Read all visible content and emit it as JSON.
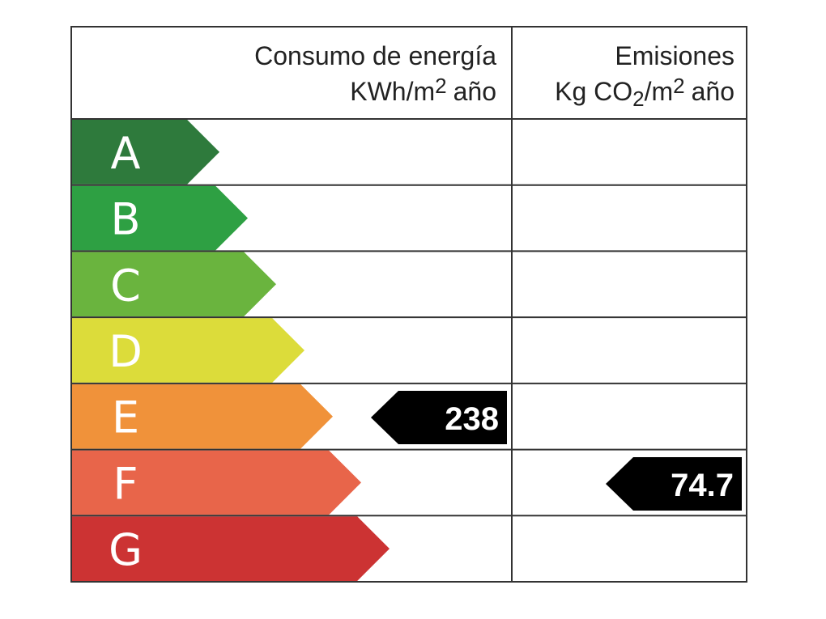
{
  "header": {
    "energy_title": "Consumo de energía",
    "energy_unit": [
      "KWh/m",
      "2",
      "año"
    ],
    "emissions_title": "Emisiones",
    "emissions_unit": [
      "Kg CO",
      "2",
      "/m",
      "2",
      "año"
    ]
  },
  "classes": [
    {
      "letter": "A",
      "color": "#2e7a3c"
    },
    {
      "letter": "B",
      "color": "#2ea043"
    },
    {
      "letter": "C",
      "color": "#6ab43e"
    },
    {
      "letter": "D",
      "color": "#dcdc3a"
    },
    {
      "letter": "E",
      "color": "#f0923a"
    },
    {
      "letter": "F",
      "color": "#e8654a"
    },
    {
      "letter": "G",
      "color": "#cc3333"
    }
  ],
  "energy_value": 238,
  "emissions_value": 74.7
}
